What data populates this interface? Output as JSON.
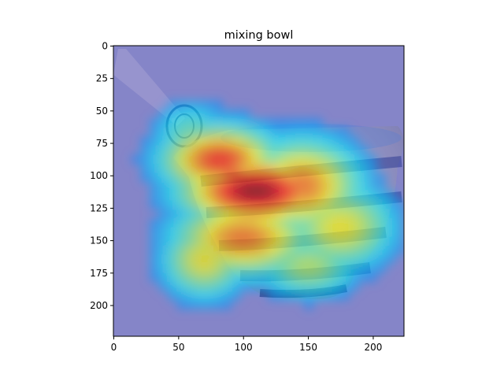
{
  "chart_data": {
    "type": "heatmap",
    "title": "mixing bowl",
    "xlabel": "",
    "ylabel": "",
    "image_size": [
      224,
      224
    ],
    "xlim": [
      0,
      224
    ],
    "ylim": [
      224,
      0
    ],
    "xticks": [
      0,
      50,
      100,
      150,
      200
    ],
    "yticks": [
      0,
      25,
      50,
      75,
      100,
      125,
      150,
      175,
      200
    ],
    "colormap": "jet",
    "overlay_alpha": 0.5,
    "subject": "striped ceramic mixing bowl with a spoon handle",
    "background_color": "#8585c8",
    "activation_peaks": [
      {
        "x": 110,
        "y": 112,
        "intensity": 1.0,
        "sx": 38,
        "sy": 18
      },
      {
        "x": 82,
        "y": 88,
        "intensity": 0.82,
        "sx": 30,
        "sy": 18
      },
      {
        "x": 145,
        "y": 108,
        "intensity": 0.72,
        "sx": 30,
        "sy": 24
      },
      {
        "x": 100,
        "y": 148,
        "intensity": 0.72,
        "sx": 36,
        "sy": 20
      },
      {
        "x": 70,
        "y": 165,
        "intensity": 0.55,
        "sx": 22,
        "sy": 20
      },
      {
        "x": 175,
        "y": 140,
        "intensity": 0.55,
        "sx": 28,
        "sy": 22
      },
      {
        "x": 150,
        "y": 170,
        "intensity": 0.45,
        "sx": 26,
        "sy": 16
      },
      {
        "x": 60,
        "y": 70,
        "intensity": 0.35,
        "sx": 20,
        "sy": 18
      }
    ]
  }
}
